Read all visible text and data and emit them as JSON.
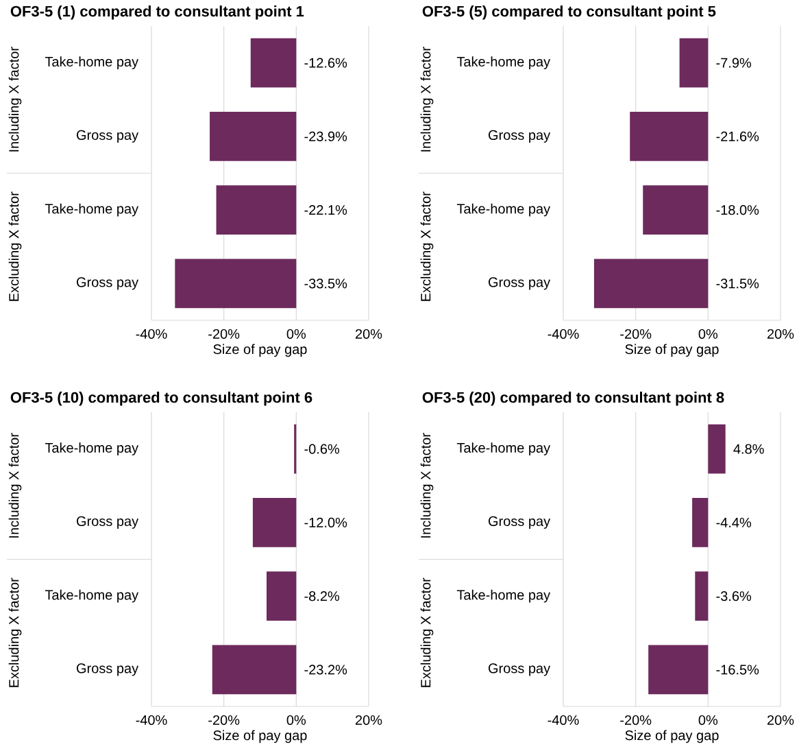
{
  "chart_data": [
    {
      "type": "bar",
      "orientation": "horizontal",
      "title": "OF3-5 (1) compared to consultant point 1",
      "xlabel": "Size of pay gap",
      "categories": [
        "Take-home pay",
        "Gross pay",
        "Take-home pay",
        "Gross pay"
      ],
      "values": [
        -12.6,
        -23.9,
        -22.1,
        -33.5
      ],
      "value_labels": [
        "-12.6%",
        "-23.9%",
        "-22.1%",
        "-33.5%"
      ],
      "color": "#6d2a5d",
      "xlim": [
        -40,
        20
      ],
      "xticks": [
        {
          "value": -40,
          "label": "-40%"
        },
        {
          "value": -20,
          "label": "-20%"
        },
        {
          "value": 0,
          "label": "0%"
        },
        {
          "value": 20,
          "label": "20%"
        }
      ],
      "grid": "x",
      "annotations": [
        "Including X factor",
        "Excluding X factor"
      ]
    },
    {
      "type": "bar",
      "orientation": "horizontal",
      "title": "OF3-5 (5) compared to consultant point 5",
      "xlabel": "Size of pay gap",
      "categories": [
        "Take-home pay",
        "Gross pay",
        "Take-home pay",
        "Gross pay"
      ],
      "values": [
        -7.9,
        -21.6,
        -18.0,
        -31.5
      ],
      "value_labels": [
        "-7.9%",
        "-21.6%",
        "-18.0%",
        "-31.5%"
      ],
      "color": "#6d2a5d",
      "xlim": [
        -40,
        20
      ],
      "xticks": [
        {
          "value": -40,
          "label": "-40%"
        },
        {
          "value": -20,
          "label": "-20%"
        },
        {
          "value": 0,
          "label": "0%"
        },
        {
          "value": 20,
          "label": "20%"
        }
      ],
      "grid": "x",
      "annotations": [
        "Including X factor",
        "Excluding X factor"
      ]
    },
    {
      "type": "bar",
      "orientation": "horizontal",
      "title": "OF3-5 (10) compared to consultant point 6",
      "xlabel": "Size of pay gap",
      "categories": [
        "Take-home pay",
        "Gross pay",
        "Take-home pay",
        "Gross pay"
      ],
      "values": [
        -0.6,
        -12.0,
        -8.2,
        -23.2
      ],
      "value_labels": [
        "-0.6%",
        "-12.0%",
        "-8.2%",
        "-23.2%"
      ],
      "color": "#6d2a5d",
      "xlim": [
        -40,
        20
      ],
      "xticks": [
        {
          "value": -40,
          "label": "-40%"
        },
        {
          "value": -20,
          "label": "-20%"
        },
        {
          "value": 0,
          "label": "0%"
        },
        {
          "value": 20,
          "label": "20%"
        }
      ],
      "grid": "x",
      "annotations": [
        "Including X factor",
        "Excluding X factor"
      ]
    },
    {
      "type": "bar",
      "orientation": "horizontal",
      "title": "OF3-5 (20) compared to consultant point 8",
      "xlabel": "Size of pay gap",
      "categories": [
        "Take-home pay",
        "Gross pay",
        "Take-home pay",
        "Gross pay"
      ],
      "values": [
        4.8,
        -4.4,
        -3.6,
        -16.5
      ],
      "value_labels": [
        "4.8%",
        "-4.4%",
        "-3.6%",
        "-16.5%"
      ],
      "color": "#6d2a5d",
      "xlim": [
        -40,
        20
      ],
      "xticks": [
        {
          "value": -40,
          "label": "-40%"
        },
        {
          "value": -20,
          "label": "-20%"
        },
        {
          "value": 0,
          "label": "0%"
        },
        {
          "value": 20,
          "label": "20%"
        }
      ],
      "grid": "x",
      "annotations": [
        "Including X factor",
        "Excluding X factor"
      ]
    }
  ]
}
